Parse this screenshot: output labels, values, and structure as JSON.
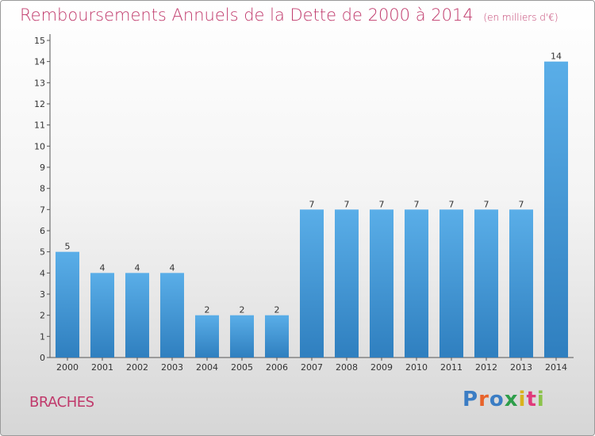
{
  "title": "Remboursements Annuels de la Dette de 2000 à 2014",
  "subtitle": "(en milliers d'€)",
  "commune": "BRACHES",
  "logo": "Proxiti",
  "colors": {
    "title": "#c0396b",
    "bar_light": "#5aaee8",
    "bar_dark": "#2f7fbf",
    "logo_letters": [
      "#3b7dc4",
      "#e8632a",
      "#3b7dc4",
      "#2e9e4a",
      "#d9b21c",
      "#e03a7a",
      "#8bc34a"
    ]
  },
  "chart_data": {
    "type": "bar",
    "categories": [
      "2000",
      "2001",
      "2002",
      "2003",
      "2004",
      "2005",
      "2006",
      "2007",
      "2008",
      "2009",
      "2010",
      "2011",
      "2012",
      "2013",
      "2014"
    ],
    "values": [
      5,
      4,
      4,
      4,
      2,
      2,
      2,
      7,
      7,
      7,
      7,
      7,
      7,
      7,
      14
    ],
    "title": "Remboursements Annuels de la Dette de 2000 à 2014",
    "ylim": [
      0,
      15
    ],
    "yticks": [
      0,
      1,
      2,
      3,
      4,
      5,
      6,
      7,
      8,
      9,
      10,
      11,
      12,
      13,
      14,
      15
    ],
    "grid": false,
    "data_labels": true
  }
}
